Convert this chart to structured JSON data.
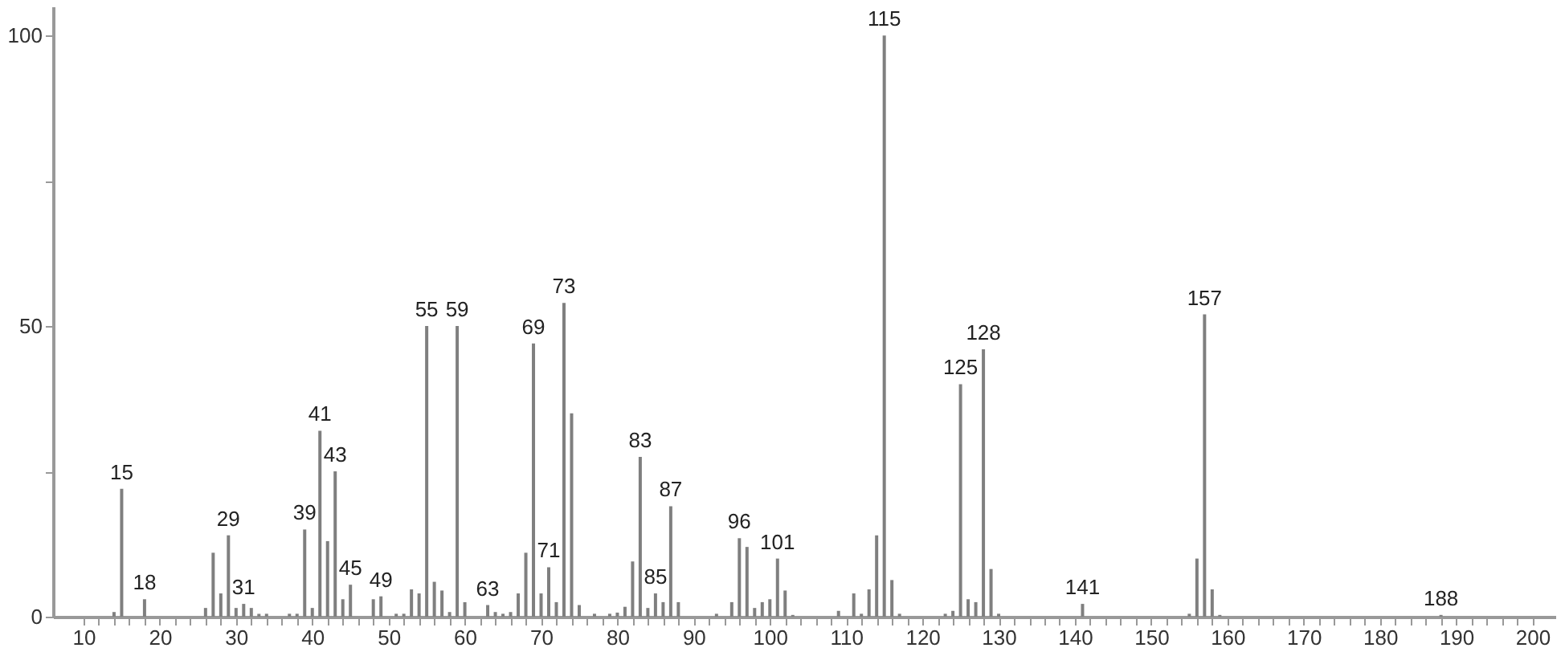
{
  "chart_data": {
    "type": "bar",
    "x": [
      14,
      15,
      18,
      26,
      27,
      28,
      29,
      30,
      31,
      32,
      33,
      34,
      37,
      38,
      39,
      40,
      41,
      42,
      43,
      44,
      45,
      48,
      49,
      51,
      52,
      53,
      54,
      55,
      56,
      57,
      58,
      59,
      60,
      63,
      64,
      65,
      66,
      67,
      68,
      69,
      70,
      71,
      72,
      73,
      74,
      75,
      77,
      79,
      80,
      81,
      82,
      83,
      84,
      85,
      86,
      87,
      88,
      93,
      95,
      96,
      97,
      98,
      99,
      100,
      101,
      102,
      103,
      109,
      111,
      112,
      113,
      114,
      115,
      116,
      117,
      123,
      124,
      125,
      126,
      127,
      128,
      129,
      130,
      141,
      155,
      156,
      157,
      158,
      159,
      188
    ],
    "values": [
      0.8,
      22,
      3,
      1.5,
      11,
      4,
      14,
      1.5,
      2.2,
      1.5,
      0.5,
      0.5,
      0.5,
      0.5,
      15,
      1.5,
      32,
      13,
      25,
      3,
      5.5,
      3,
      3.5,
      0.5,
      0.5,
      4.7,
      4,
      50,
      6,
      4.5,
      0.8,
      50,
      2.5,
      2,
      0.8,
      0.5,
      0.8,
      4,
      11,
      47,
      4,
      8.5,
      2.5,
      54,
      35,
      2,
      0.5,
      0.5,
      0.7,
      1.7,
      9.5,
      27.5,
      1.5,
      4,
      2.5,
      19,
      2.5,
      0.5,
      2.5,
      13.5,
      12,
      1.5,
      2.5,
      3,
      10,
      4.5,
      0.3,
      1,
      4,
      0.5,
      4.7,
      14,
      100,
      6.3,
      0.5,
      0.5,
      1,
      40,
      3,
      2.5,
      46,
      8.2,
      0.5,
      2.2,
      0.5,
      10,
      52,
      4.7,
      0.3,
      0.3
    ],
    "color": "#7f7f7f",
    "xlim": [
      6,
      203
    ],
    "ylim": [
      0,
      105
    ],
    "xticks": [
      10,
      {
        "value": 12,
        "label": null
      },
      {
        "value": 14,
        "label": null
      },
      {
        "value": 16,
        "label": null
      },
      {
        "value": 18,
        "label": null
      },
      20,
      {
        "value": 22,
        "label": null
      },
      {
        "value": 24,
        "label": null
      },
      {
        "value": 26,
        "label": null
      },
      {
        "value": 28,
        "label": null
      },
      30,
      {
        "value": 32,
        "label": null
      },
      {
        "value": 34,
        "label": null
      },
      {
        "value": 36,
        "label": null
      },
      {
        "value": 38,
        "label": null
      },
      40,
      {
        "value": 42,
        "label": null
      },
      {
        "value": 44,
        "label": null
      },
      {
        "value": 46,
        "label": null
      },
      {
        "value": 48,
        "label": null
      },
      50,
      {
        "value": 52,
        "label": null
      },
      {
        "value": 54,
        "label": null
      },
      {
        "value": 56,
        "label": null
      },
      {
        "value": 58,
        "label": null
      },
      60,
      {
        "value": 62,
        "label": null
      },
      {
        "value": 64,
        "label": null
      },
      {
        "value": 66,
        "label": null
      },
      {
        "value": 68,
        "label": null
      },
      70,
      {
        "value": 72,
        "label": null
      },
      {
        "value": 74,
        "label": null
      },
      {
        "value": 76,
        "label": null
      },
      {
        "value": 78,
        "label": null
      },
      80,
      {
        "value": 82,
        "label": null
      },
      {
        "value": 84,
        "label": null
      },
      {
        "value": 86,
        "label": null
      },
      {
        "value": 88,
        "label": null
      },
      90,
      {
        "value": 92,
        "label": null
      },
      {
        "value": 94,
        "label": null
      },
      {
        "value": 96,
        "label": null
      },
      {
        "value": 98,
        "label": null
      },
      100,
      {
        "value": 102,
        "label": null
      },
      {
        "value": 104,
        "label": null
      },
      {
        "value": 106,
        "label": null
      },
      {
        "value": 108,
        "label": null
      },
      110,
      {
        "value": 112,
        "label": null
      },
      {
        "value": 114,
        "label": null
      },
      {
        "value": 116,
        "label": null
      },
      {
        "value": 118,
        "label": null
      },
      120,
      {
        "value": 122,
        "label": null
      },
      {
        "value": 124,
        "label": null
      },
      {
        "value": 126,
        "label": null
      },
      {
        "value": 128,
        "label": null
      },
      130,
      {
        "value": 132,
        "label": null
      },
      {
        "value": 134,
        "label": null
      },
      {
        "value": 136,
        "label": null
      },
      {
        "value": 138,
        "label": null
      },
      140,
      {
        "value": 142,
        "label": null
      },
      {
        "value": 144,
        "label": null
      },
      {
        "value": 146,
        "label": null
      },
      {
        "value": 148,
        "label": null
      },
      150,
      {
        "value": 152,
        "label": null
      },
      {
        "value": 154,
        "label": null
      },
      {
        "value": 156,
        "label": null
      },
      {
        "value": 158,
        "label": null
      },
      160,
      {
        "value": 162,
        "label": null
      },
      {
        "value": 164,
        "label": null
      },
      {
        "value": 166,
        "label": null
      },
      {
        "value": 168,
        "label": null
      },
      170,
      {
        "value": 172,
        "label": null
      },
      {
        "value": 174,
        "label": null
      },
      {
        "value": 176,
        "label": null
      },
      {
        "value": 178,
        "label": null
      },
      180,
      {
        "value": 182,
        "label": null
      },
      {
        "value": 184,
        "label": null
      },
      {
        "value": 186,
        "label": null
      },
      {
        "value": 188,
        "label": null
      },
      190,
      {
        "value": 192,
        "label": null
      },
      {
        "value": 194,
        "label": null
      },
      {
        "value": 196,
        "label": null
      },
      {
        "value": 198,
        "label": null
      },
      200
    ],
    "yticks": [
      0,
      {
        "value": 25,
        "label": null
      },
      50,
      {
        "value": 75,
        "label": null
      },
      100
    ],
    "grid": false,
    "annotations": [
      {
        "text": "15",
        "x": 15,
        "y": 22
      },
      {
        "text": "18",
        "x": 18,
        "y": 3
      },
      {
        "text": "29",
        "x": 29,
        "y": 14
      },
      {
        "text": "31",
        "x": 31,
        "y": 2.2
      },
      {
        "text": "39",
        "x": 39,
        "y": 15
      },
      {
        "text": "41",
        "x": 41,
        "y": 32
      },
      {
        "text": "43",
        "x": 43,
        "y": 25
      },
      {
        "text": "45",
        "x": 45,
        "y": 5.5
      },
      {
        "text": "49",
        "x": 49,
        "y": 3.5
      },
      {
        "text": "55",
        "x": 55,
        "y": 50
      },
      {
        "text": "59",
        "x": 59,
        "y": 50
      },
      {
        "text": "63",
        "x": 63,
        "y": 2
      },
      {
        "text": "69",
        "x": 69,
        "y": 47
      },
      {
        "text": "71",
        "x": 71,
        "y": 8.5
      },
      {
        "text": "73",
        "x": 73,
        "y": 54
      },
      {
        "text": "83",
        "x": 83,
        "y": 27.5
      },
      {
        "text": "85",
        "x": 85,
        "y": 4
      },
      {
        "text": "87",
        "x": 87,
        "y": 19
      },
      {
        "text": "96",
        "x": 96,
        "y": 13.5
      },
      {
        "text": "101",
        "x": 101,
        "y": 10
      },
      {
        "text": "115",
        "x": 115,
        "y": 100
      },
      {
        "text": "125",
        "x": 125,
        "y": 40
      },
      {
        "text": "128",
        "x": 128,
        "y": 46
      },
      {
        "text": "141",
        "x": 141,
        "y": 2.2
      },
      {
        "text": "157",
        "x": 157,
        "y": 52
      },
      {
        "text": "188",
        "x": 188,
        "y": 0.3
      }
    ]
  }
}
